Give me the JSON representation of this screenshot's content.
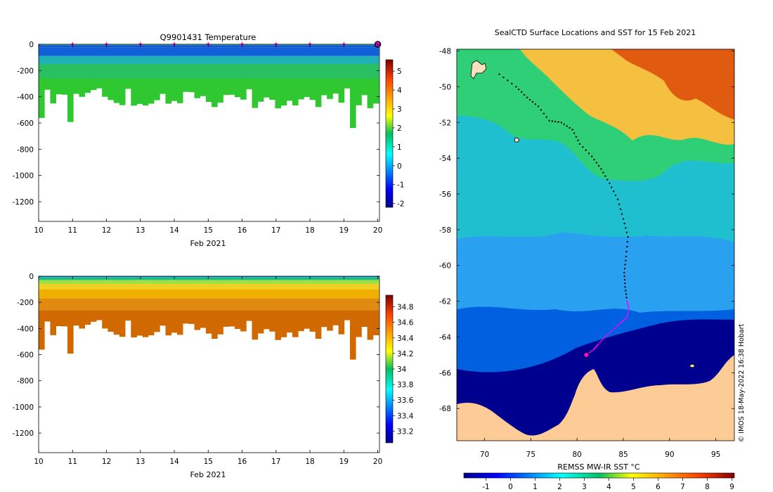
{
  "chart_data": [
    {
      "id": "temperature",
      "type": "heatmap",
      "title": "Q9901431  Temperature",
      "xlabel": "Feb 2021",
      "ylabel": "",
      "xlim": [
        10,
        20.05
      ],
      "ylim": [
        -1350,
        0
      ],
      "xticks": [
        10,
        11,
        12,
        13,
        14,
        15,
        16,
        17,
        18,
        19,
        20
      ],
      "yticks": [
        0,
        -200,
        -400,
        -600,
        -800,
        -1000,
        -1200
      ],
      "colorbar": {
        "min": -2.2,
        "max": 5.6,
        "ticks": [
          -2,
          -1,
          0,
          1,
          2,
          3,
          4,
          5
        ]
      },
      "markers_x": [
        11,
        12,
        13,
        14,
        15,
        16,
        17,
        18,
        19,
        20
      ],
      "last_marker_x": 20
    },
    {
      "id": "salinity",
      "type": "heatmap",
      "title": "",
      "xlabel": "Feb 2021",
      "ylabel": "",
      "xlim": [
        10,
        20.05
      ],
      "ylim": [
        -1350,
        0
      ],
      "xticks": [
        10,
        11,
        12,
        13,
        14,
        15,
        16,
        17,
        18,
        19,
        20
      ],
      "yticks": [
        0,
        -200,
        -400,
        -600,
        -800,
        -1000,
        -1200
      ],
      "colorbar": {
        "min": 33.05,
        "max": 34.95,
        "ticks": [
          33.2,
          33.4,
          33.6,
          33.8,
          34,
          34.2,
          34.4,
          34.6,
          34.8
        ]
      }
    },
    {
      "id": "sst_map",
      "type": "heatmap",
      "title": "SealCTD Surface Locations and SST for 15 Feb 2021",
      "xlabel": "",
      "ylabel": "",
      "xlim": [
        67,
        97
      ],
      "ylim": [
        -69.8,
        -47.9
      ],
      "xticks": [
        70,
        75,
        80,
        85,
        90,
        95
      ],
      "yticks": [
        -48,
        -50,
        -52,
        -54,
        -56,
        -58,
        -60,
        -62,
        -64,
        -66,
        -68
      ],
      "colorbar": {
        "label": "REMSS MW-IR SST °C",
        "min": -1.9,
        "max": 9.1,
        "ticks": [
          -1,
          0,
          1,
          2,
          3,
          4,
          5,
          6,
          7,
          8,
          9
        ]
      },
      "track": [
        [
          71.6,
          -49.3
        ],
        [
          73.4,
          -50.0
        ],
        [
          74.6,
          -50.6
        ],
        [
          75.8,
          -51.1
        ],
        [
          77.0,
          -51.9
        ],
        [
          78.3,
          -52.0
        ],
        [
          79.5,
          -52.4
        ],
        [
          80.3,
          -53.2
        ],
        [
          81.6,
          -53.9
        ],
        [
          82.6,
          -54.6
        ],
        [
          83.5,
          -55.4
        ],
        [
          84.4,
          -56.3
        ],
        [
          85.0,
          -57.4
        ],
        [
          85.5,
          -58.4
        ],
        [
          85.3,
          -59.5
        ],
        [
          85.1,
          -60.4
        ],
        [
          85.2,
          -61.2
        ],
        [
          85.4,
          -62.0
        ],
        [
          85.6,
          -62.4
        ],
        [
          85.4,
          -62.9
        ],
        [
          84.7,
          -63.2
        ],
        [
          83.9,
          -63.6
        ],
        [
          83.0,
          -64.0
        ],
        [
          82.3,
          -64.4
        ],
        [
          81.8,
          -64.7
        ],
        [
          81.0,
          -65.0
        ]
      ],
      "recent_track_from_index": 17,
      "current_position": [
        81.0,
        -65.0
      ],
      "credit": "© IMOS 18-May-2022 16:38 Hobart"
    }
  ]
}
